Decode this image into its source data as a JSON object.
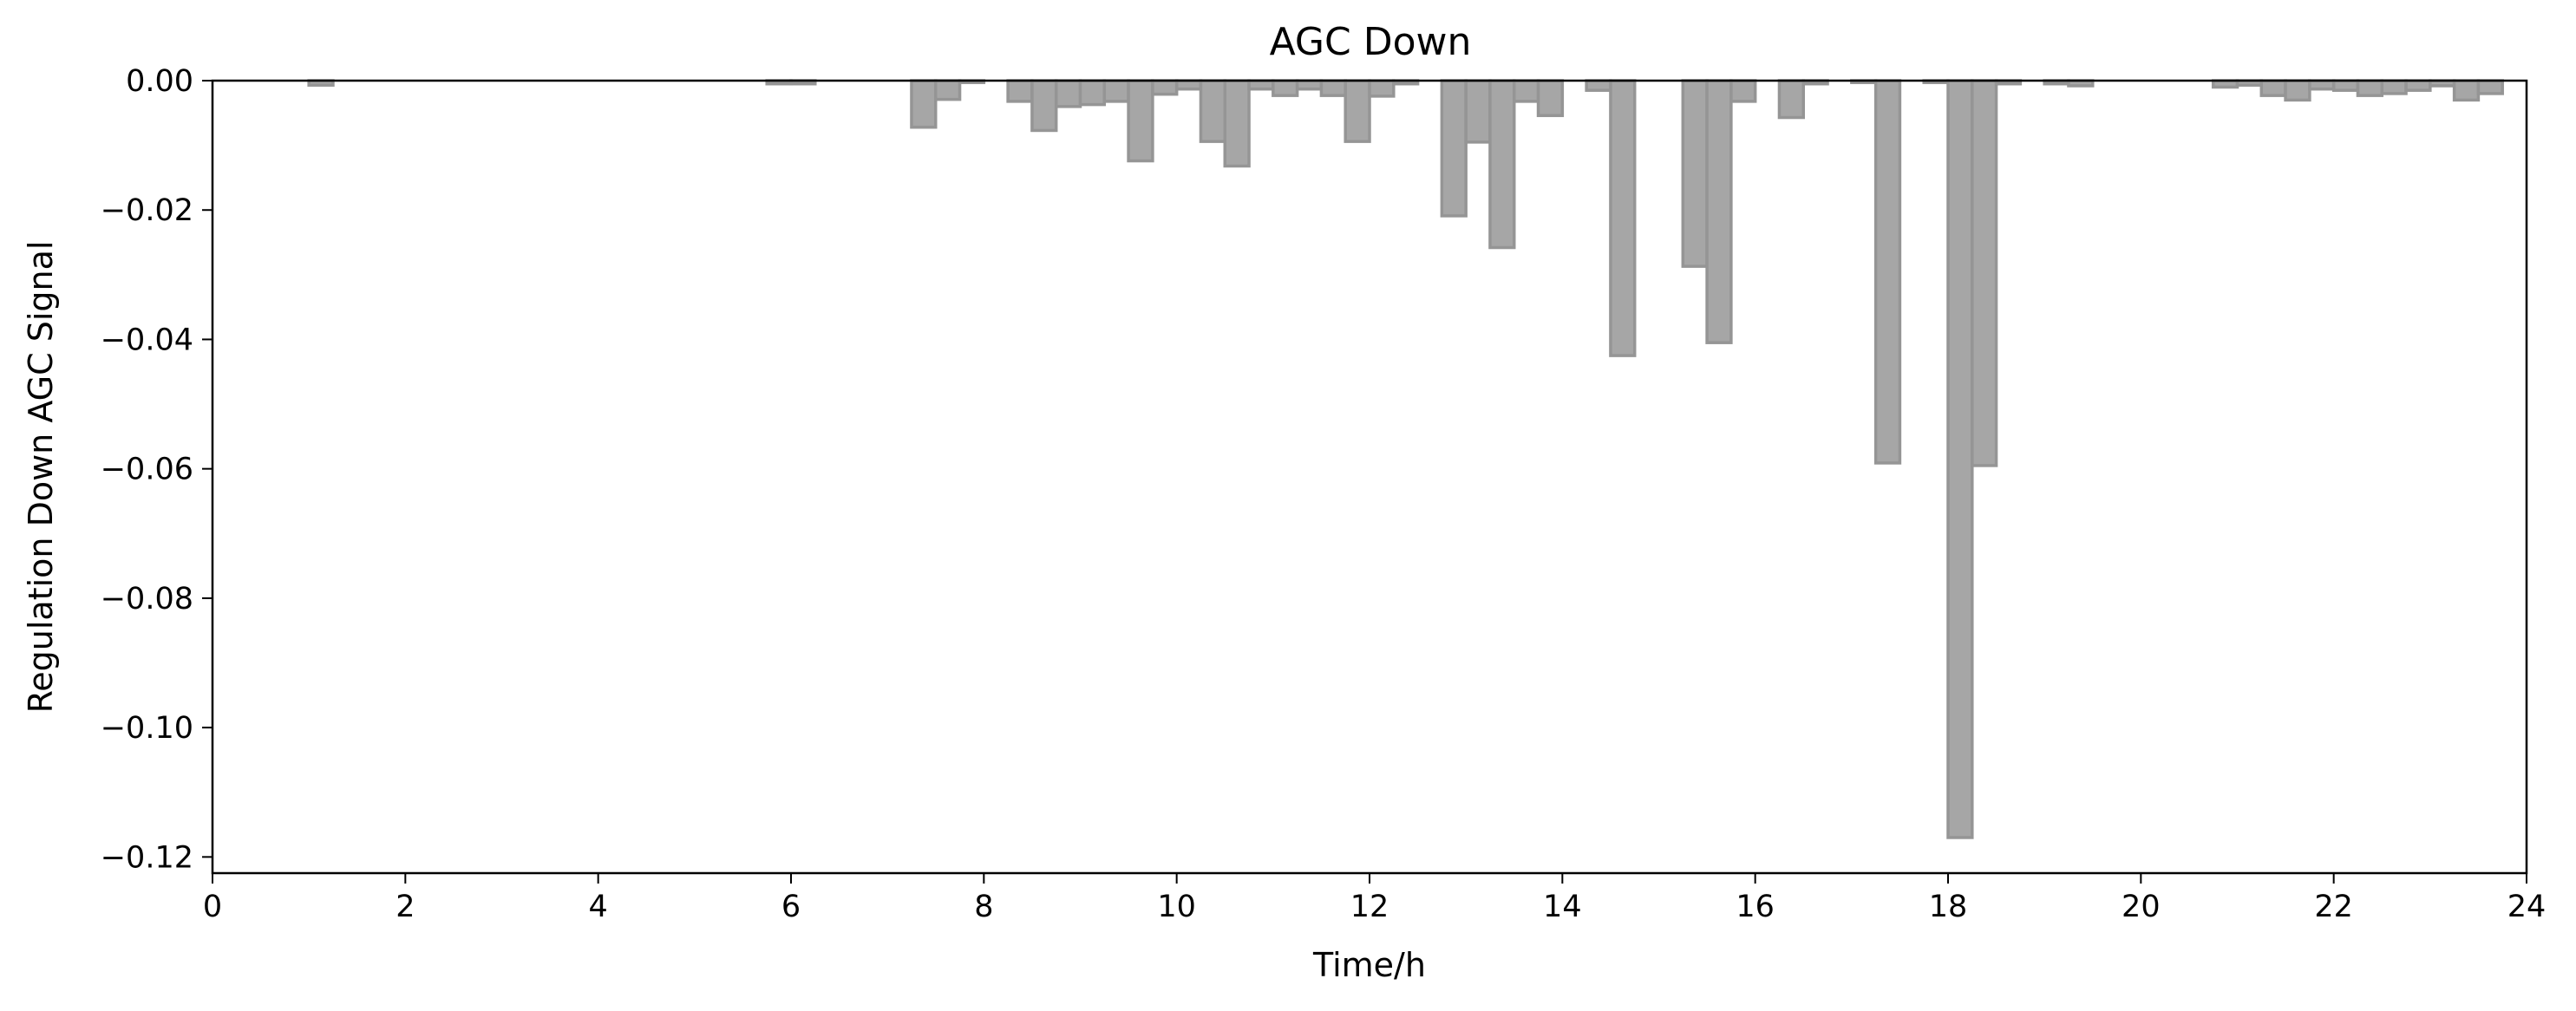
{
  "chart_data": {
    "type": "bar",
    "title": "AGC Down",
    "xlabel": "Time/h",
    "ylabel": "Regulation Down AGC Signal",
    "xlim": [
      0,
      24
    ],
    "ylim": [
      -0.1225,
      0.0
    ],
    "bar_width_h": 0.25,
    "x_ticks": [
      "0",
      "2",
      "4",
      "6",
      "8",
      "10",
      "12",
      "14",
      "16",
      "18",
      "20",
      "22",
      "24"
    ],
    "y_ticks": [
      "0.00",
      "−0.02",
      "−0.04",
      "−0.06",
      "−0.08",
      "−0.10",
      "−0.12"
    ],
    "y_tick_values": [
      0.0,
      -0.02,
      -0.04,
      -0.06,
      -0.08,
      -0.1,
      -0.12
    ],
    "x_tick_values": [
      0,
      2,
      4,
      6,
      8,
      10,
      12,
      14,
      16,
      18,
      20,
      22,
      24
    ],
    "fill_color": "#a6a6a6",
    "edge_color": "#959595",
    "x": [
      1.0,
      5.75,
      6.0,
      7.25,
      7.5,
      7.75,
      8.25,
      8.5,
      8.75,
      9.0,
      9.25,
      9.5,
      9.75,
      10.0,
      10.25,
      10.5,
      10.75,
      11.0,
      11.25,
      11.5,
      11.75,
      12.0,
      12.25,
      12.75,
      13.0,
      13.25,
      13.5,
      13.75,
      14.25,
      14.5,
      15.25,
      15.5,
      15.75,
      16.25,
      16.5,
      17.0,
      17.25,
      17.75,
      18.0,
      18.25,
      18.5,
      19.0,
      19.25,
      20.75,
      21.0,
      21.25,
      21.5,
      21.75,
      22.0,
      22.25,
      22.5,
      22.75,
      23.0,
      23.25,
      23.5
    ],
    "values": [
      -0.0007,
      -0.0005,
      -0.0005,
      -0.0072,
      -0.0029,
      -0.0003,
      -0.0032,
      -0.0077,
      -0.004,
      -0.0037,
      -0.0032,
      -0.0124,
      -0.0021,
      -0.0013,
      -0.0094,
      -0.0132,
      -0.0013,
      -0.0023,
      -0.0013,
      -0.0023,
      -0.0094,
      -0.0024,
      -0.0005,
      -0.0209,
      -0.0095,
      -0.0258,
      -0.0032,
      -0.0054,
      -0.0015,
      -0.0425,
      -0.0287,
      -0.0405,
      -0.0032,
      -0.0057,
      -0.0005,
      -0.0003,
      -0.0591,
      -0.0003,
      -0.117,
      -0.0595,
      -0.0005,
      -0.0005,
      -0.0008,
      -0.001,
      -0.0007,
      -0.0023,
      -0.003,
      -0.0013,
      -0.0015,
      -0.0023,
      -0.002,
      -0.0015,
      -0.0008,
      -0.003,
      -0.002
    ]
  }
}
